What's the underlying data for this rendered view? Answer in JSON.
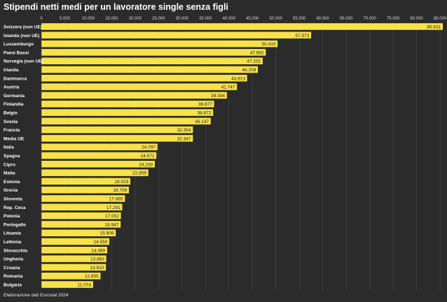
{
  "title": "Stipendi netti medi per un lavoratore single senza figli",
  "source": "Elaborazione dati Eurostat 2024",
  "colors": {
    "bar": "#f7e24a",
    "background": "#2b2b2b",
    "grid": "#4a4a4a"
  },
  "chart_data": {
    "type": "bar",
    "orientation": "horizontal",
    "title": "Stipendi netti medi per un lavoratore single senza figli",
    "xlim": [
      0,
      85000
    ],
    "xticks": [
      0,
      5000,
      10000,
      15000,
      20000,
      25000,
      30000,
      35000,
      40000,
      45000,
      50000,
      55000,
      60000,
      65000,
      70000,
      75000,
      80000,
      85000
    ],
    "xtick_labels": [
      "0",
      "5.000",
      "10.000",
      "15.000",
      "20.000",
      "25.000",
      "30.000",
      "35.000",
      "40.000",
      "45.000",
      "50.000",
      "55.000",
      "60.000",
      "65.000",
      "70.000",
      "75.000",
      "80.000",
      "85.000"
    ],
    "categories": [
      "Svizzera (non UE)",
      "Islanda (non UE)",
      "Lussemburgo",
      "Paesi Bassi",
      "Norvegia (non UE)",
      "Irlanda",
      "Danimarca",
      "Austria",
      "Germania",
      "Finlandia",
      "Belgio",
      "Svezia",
      "Francia",
      "Media UE",
      "Italia",
      "Spagna",
      "Cipro",
      "Malta",
      "Estonia",
      "Grecia",
      "Slovenia",
      "Rep. Ceca",
      "Polonia",
      "Portogallo",
      "Lituania",
      "Lettonia",
      "Slovacchia",
      "Ungheria",
      "Croazia",
      "Romania",
      "Bulgaria"
    ],
    "values": [
      85631,
      57573,
      50410,
      47892,
      47232,
      46208,
      43913,
      41747,
      39594,
      36877,
      36672,
      36147,
      32354,
      32347,
      24797,
      24571,
      24230,
      22859,
      19023,
      18709,
      17865,
      17291,
      17002,
      16947,
      15909,
      14550,
      14069,
      13883,
      13810,
      12655,
      11074
    ],
    "value_labels": [
      "85.631",
      "57.573",
      "50.410",
      "47.892",
      "47.232",
      "46.208",
      "43.913",
      "41.747",
      "39.594",
      "36.877",
      "36.672",
      "36.147",
      "32.354",
      "32.347",
      "24.797",
      "24.571",
      "24.230",
      "22.859",
      "19.023",
      "18.709",
      "17.865",
      "17.291",
      "17.002",
      "16.947",
      "15.909",
      "14.550",
      "14.069",
      "13.883",
      "13.810",
      "12.655",
      "11.074"
    ],
    "grid": true,
    "legend": false
  }
}
